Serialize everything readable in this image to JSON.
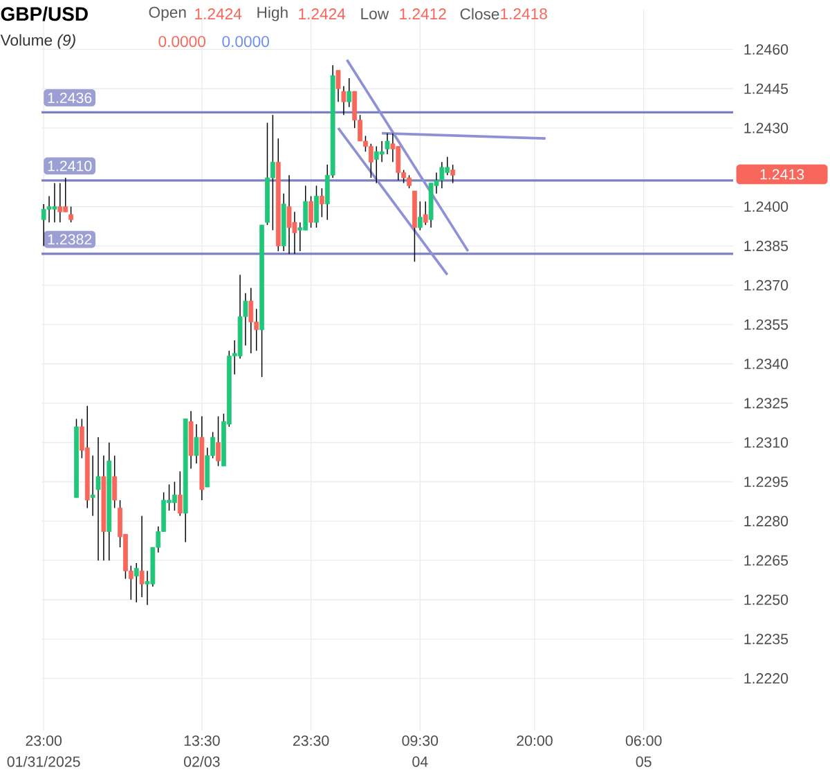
{
  "chart_data": {
    "type": "candlestick",
    "title": "GBP/USD",
    "annotations": [
      "Open",
      "1.2424",
      "High",
      "1.2424",
      "Low",
      "1.2412",
      "Close",
      "1.2418",
      "Volume *(9)*",
      "0.0000",
      "0.0000",
      "1.2413",
      "01/31/2025",
      "02/03",
      "04",
      "05"
    ],
    "x": [
      "2025-02-02T23:00",
      "2025-02-02T23:30",
      "2025-02-03T00:00",
      "2025-02-03T00:30",
      "2025-02-03T01:00",
      "2025-02-03T01:30",
      "2025-02-03T02:00",
      "2025-02-03T02:30",
      "2025-02-03T03:00",
      "2025-02-03T03:30",
      "2025-02-03T04:00",
      "2025-02-03T04:30",
      "2025-02-03T05:00",
      "2025-02-03T05:30",
      "2025-02-03T06:00",
      "2025-02-03T06:30",
      "2025-02-03T07:00",
      "2025-02-03T07:30",
      "2025-02-03T08:00",
      "2025-02-03T08:30",
      "2025-02-03T09:00",
      "2025-02-03T09:30",
      "2025-02-03T10:00",
      "2025-02-03T10:30",
      "2025-02-03T11:00",
      "2025-02-03T11:30",
      "2025-02-03T12:00",
      "2025-02-03T12:30",
      "2025-02-03T13:00",
      "2025-02-03T13:30",
      "2025-02-03T14:00",
      "2025-02-03T14:30",
      "2025-02-03T15:00",
      "2025-02-03T15:30",
      "2025-02-03T16:00",
      "2025-02-03T16:30",
      "2025-02-03T17:00",
      "2025-02-03T17:30",
      "2025-02-03T18:00",
      "2025-02-03T18:30",
      "2025-02-03T19:00",
      "2025-02-03T19:30",
      "2025-02-03T20:00",
      "2025-02-03T20:30",
      "2025-02-03T21:00",
      "2025-02-03T21:30",
      "2025-02-03T22:00",
      "2025-02-03T22:30",
      "2025-02-03T23:00",
      "2025-02-03T23:30",
      "2025-02-04T00:00",
      "2025-02-04T00:30",
      "2025-02-04T01:00",
      "2025-02-04T01:30",
      "2025-02-04T02:00",
      "2025-02-04T02:30",
      "2025-02-04T03:00",
      "2025-02-04T03:30",
      "2025-02-04T04:00",
      "2025-02-04T04:30",
      "2025-02-04T05:00",
      "2025-02-04T05:30",
      "2025-02-04T06:00",
      "2025-02-04T06:30",
      "2025-02-04T07:00",
      "2025-02-04T07:30",
      "2025-02-04T08:00",
      "2025-02-04T08:30",
      "2025-02-04T09:00",
      "2025-02-04T09:30",
      "2025-02-04T10:00",
      "2025-02-04T10:30",
      "2025-02-04T11:00",
      "2025-02-04T11:30",
      "2025-02-04T12:00",
      "2025-02-04T12:30"
    ],
    "ohlc": [
      [
        1.2395,
        1.2401,
        1.2385,
        1.2399
      ],
      [
        1.2399,
        1.2404,
        1.2394,
        1.24
      ],
      [
        1.2399,
        1.2409,
        1.2394,
        1.24
      ],
      [
        1.24,
        1.2409,
        1.2394,
        1.2398
      ],
      [
        1.24,
        1.2411,
        1.2398,
        1.2398
      ],
      [
        1.2397,
        1.24,
        1.2394,
        1.2395
      ],
      [
        1.2289,
        1.2319,
        1.2289,
        1.2316
      ],
      [
        1.2316,
        1.2319,
        1.2304,
        1.2307
      ],
      [
        1.2308,
        1.2324,
        1.2285,
        1.2288
      ],
      [
        1.2289,
        1.2305,
        1.2282,
        1.229
      ],
      [
        1.2292,
        1.2312,
        1.2265,
        1.2297
      ],
      [
        1.2297,
        1.2305,
        1.2265,
        1.2276
      ],
      [
        1.2276,
        1.231,
        1.2265,
        1.2303
      ],
      [
        1.2297,
        1.2305,
        1.2285,
        1.2288
      ],
      [
        1.2285,
        1.2288,
        1.227,
        1.2274
      ],
      [
        1.2275,
        1.2275,
        1.2258,
        1.2261
      ],
      [
        1.2261,
        1.2263,
        1.225,
        1.2258
      ],
      [
        1.2259,
        1.2264,
        1.2249,
        1.2262
      ],
      [
        1.2261,
        1.2282,
        1.2251,
        1.2256
      ],
      [
        1.2256,
        1.2261,
        1.2248,
        1.2257
      ],
      [
        1.2256,
        1.227,
        1.2255,
        1.227
      ],
      [
        1.227,
        1.2278,
        1.2268,
        1.2276
      ],
      [
        1.2276,
        1.2291,
        1.2276,
        1.2288
      ],
      [
        1.2287,
        1.2294,
        1.2284,
        1.2288
      ],
      [
        1.2287,
        1.2295,
        1.2284,
        1.229
      ],
      [
        1.229,
        1.2299,
        1.2282,
        1.2283
      ],
      [
        1.2283,
        1.2319,
        1.2272,
        1.2319
      ],
      [
        1.2318,
        1.2322,
        1.23,
        1.2305
      ],
      [
        1.2305,
        1.2317,
        1.2302,
        1.2312
      ],
      [
        1.2312,
        1.232,
        1.2288,
        1.2292
      ],
      [
        1.2293,
        1.2308,
        1.2293,
        1.2305
      ],
      [
        1.2305,
        1.2314,
        1.2304,
        1.2312
      ],
      [
        1.231,
        1.232,
        1.2301,
        1.2303
      ],
      [
        1.2301,
        1.2321,
        1.2301,
        1.2318
      ],
      [
        1.2317,
        1.2345,
        1.2316,
        1.2343
      ],
      [
        1.2343,
        1.2349,
        1.2336,
        1.2344
      ],
      [
        1.2343,
        1.2374,
        1.2342,
        1.2358
      ],
      [
        1.2358,
        1.2367,
        1.2347,
        1.2364
      ],
      [
        1.2364,
        1.2369,
        1.2344,
        1.2356
      ],
      [
        1.2356,
        1.2361,
        1.2345,
        1.2353
      ],
      [
        1.2353,
        1.2393,
        1.2335,
        1.2393
      ],
      [
        1.2394,
        1.2432,
        1.2393,
        1.2411
      ],
      [
        1.2411,
        1.2435,
        1.2391,
        1.2417
      ],
      [
        1.2417,
        1.2426,
        1.2383,
        1.2385
      ],
      [
        1.2385,
        1.2405,
        1.2383,
        1.2401
      ],
      [
        1.24,
        1.2412,
        1.2382,
        1.2392
      ],
      [
        1.2394,
        1.2398,
        1.2382,
        1.239
      ],
      [
        1.2391,
        1.2394,
        1.2383,
        1.2392
      ],
      [
        1.2391,
        1.2408,
        1.2391,
        1.2402
      ],
      [
        1.2402,
        1.2404,
        1.2392,
        1.2394
      ],
      [
        1.2394,
        1.2408,
        1.2392,
        1.2404
      ],
      [
        1.2404,
        1.2407,
        1.2396,
        1.2401
      ],
      [
        1.2401,
        1.2416,
        1.2395,
        1.2412
      ],
      [
        1.2412,
        1.2454,
        1.2411,
        1.245
      ],
      [
        1.2452,
        1.2452,
        1.244,
        1.2445
      ],
      [
        1.2444,
        1.2446,
        1.2435,
        1.244
      ],
      [
        1.244,
        1.2449,
        1.2438,
        1.2444
      ],
      [
        1.2444,
        1.2444,
        1.243,
        1.2433
      ],
      [
        1.2433,
        1.2435,
        1.2425,
        1.2425
      ],
      [
        1.2425,
        1.2427,
        1.2421,
        1.2423
      ],
      [
        1.2423,
        1.2424,
        1.2411,
        1.2417
      ],
      [
        1.2418,
        1.2423,
        1.2409,
        1.2421
      ],
      [
        1.242,
        1.2425,
        1.2417,
        1.2421
      ],
      [
        1.2422,
        1.2428,
        1.242,
        1.2425
      ],
      [
        1.2424,
        1.2428,
        1.2417,
        1.2422
      ],
      [
        1.2423,
        1.2423,
        1.241,
        1.2413
      ],
      [
        1.2413,
        1.2414,
        1.2409,
        1.2411
      ],
      [
        1.2411,
        1.2412,
        1.2407,
        1.2408
      ],
      [
        1.2406,
        1.2406,
        1.2379,
        1.2392
      ],
      [
        1.2392,
        1.2402,
        1.2391,
        1.2396
      ],
      [
        1.2397,
        1.2402,
        1.2393,
        1.2394
      ],
      [
        1.2395,
        1.2409,
        1.2392,
        1.2409
      ],
      [
        1.2408,
        1.2413,
        1.2405,
        1.241
      ],
      [
        1.241,
        1.2417,
        1.2407,
        1.2415
      ],
      [
        1.2413,
        1.2419,
        1.2412,
        1.2415
      ],
      [
        1.2414,
        1.2416,
        1.2409,
        1.2412
      ]
    ],
    "series": [
      {
        "type": "line",
        "x": [
          "2025-02-04T02:48",
          "2025-02-04T13:54"
        ],
        "values": [
          1.2456,
          1.2383
        ],
        "color": "#8f91d6"
      },
      {
        "type": "line",
        "x": [
          "2025-02-04T02:00",
          "2025-02-04T12:00"
        ],
        "values": [
          1.243,
          1.2374
        ],
        "color": "#8f91d6"
      },
      {
        "type": "line",
        "x": [
          "2025-02-04T06:00",
          "2025-02-04T21:00"
        ],
        "values": [
          1.2428,
          1.2426
        ],
        "color": "#8f91d6"
      }
    ],
    "ref_lines": [
      {
        "axis": "y",
        "value": 1.2436,
        "label": "1.2436",
        "color": "#7b7fc4"
      },
      {
        "axis": "y",
        "value": 1.241,
        "label": "1.2410",
        "color": "#7b7fc4"
      },
      {
        "axis": "y",
        "value": 1.2382,
        "label": "1.2382",
        "color": "#7b7fc4"
      }
    ],
    "xlim": [
      "2025-02-02T22:48",
      "2025-02-05T14:12"
    ],
    "xticks": [
      {
        "value": "2025-02-02T23:00",
        "label": "23:00"
      },
      {
        "value": "2025-02-03T13:30",
        "label": "13:30"
      },
      {
        "value": "2025-02-03T23:30",
        "label": "23:30"
      },
      {
        "value": "2025-02-04T09:30",
        "label": "09:30"
      },
      {
        "value": "2025-02-04T20:00",
        "label": "20:00"
      },
      {
        "value": "2025-02-05T06:00",
        "label": "06:00"
      }
    ],
    "ylim": [
      1.22,
      1.2475
    ],
    "yticks": [
      {
        "value": 1.222,
        "label": "1.2220"
      },
      {
        "value": 1.2235,
        "label": "1.2235"
      },
      {
        "value": 1.225,
        "label": "1.2250"
      },
      {
        "value": 1.2265,
        "label": "1.2265"
      },
      {
        "value": 1.228,
        "label": "1.2280"
      },
      {
        "value": 1.2295,
        "label": "1.2295"
      },
      {
        "value": 1.231,
        "label": "1.2310"
      },
      {
        "value": 1.2325,
        "label": "1.2325"
      },
      {
        "value": 1.234,
        "label": "1.2340"
      },
      {
        "value": 1.2355,
        "label": "1.2355"
      },
      {
        "value": 1.237,
        "label": "1.2370"
      },
      {
        "value": 1.2385,
        "label": "1.2385"
      },
      {
        "value": 1.24,
        "label": "1.2400"
      },
      {
        "value": 1.243,
        "label": "1.2430"
      },
      {
        "value": 1.2445,
        "label": "1.2445"
      },
      {
        "value": 1.246,
        "label": "1.2460"
      }
    ],
    "grid": true
  }
}
